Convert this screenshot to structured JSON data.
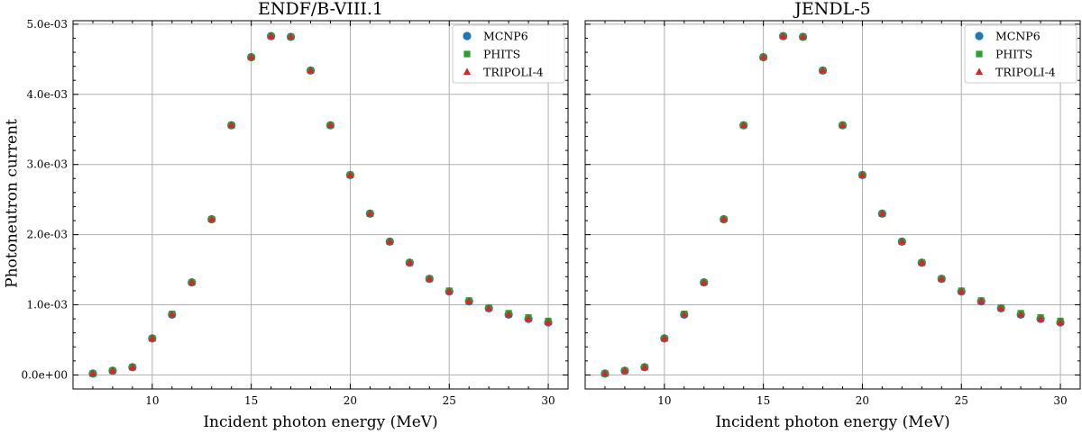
{
  "figure": {
    "ylabel": "Photoneutron current"
  },
  "chart_data": [
    {
      "type": "scatter",
      "title": "ENDF/B-VIII.1",
      "xlabel": "Incident photon energy (MeV)",
      "ylabel": "Photoneutron current",
      "xlim": [
        6.0,
        31.0
      ],
      "ylim": [
        -0.0002,
        0.00505
      ],
      "xticks": [
        10,
        15,
        20,
        25,
        30
      ],
      "yticks": [
        0.0,
        0.001,
        0.002,
        0.003,
        0.004,
        0.005
      ],
      "ytick_labels": [
        "0.0e+00",
        "1.0e-03",
        "2.0e-03",
        "3.0e-03",
        "4.0e-03",
        "5.0e-03"
      ],
      "grid": true,
      "legend_position": "top-right",
      "x": [
        7,
        8,
        9,
        10,
        11,
        12,
        13,
        14,
        15,
        16,
        17,
        18,
        19,
        20,
        21,
        22,
        23,
        24,
        25,
        26,
        27,
        28,
        29,
        30
      ],
      "series": [
        {
          "name": "MCNP6",
          "marker": "circle",
          "color": "#1f77b4",
          "values": [
            2e-05,
            6e-05,
            0.00011,
            0.00052,
            0.00086,
            0.00132,
            0.00222,
            0.00356,
            0.00453,
            0.00483,
            0.00482,
            0.00434,
            0.00356,
            0.00285,
            0.0023,
            0.0019,
            0.0016,
            0.00137,
            0.00119,
            0.00105,
            0.00095,
            0.00086,
            0.0008,
            0.00075
          ]
        },
        {
          "name": "PHITS",
          "marker": "square",
          "color": "#2ca02c",
          "values": [
            2e-05,
            6e-05,
            0.00011,
            0.00052,
            0.00087,
            0.00132,
            0.00222,
            0.00356,
            0.00453,
            0.00483,
            0.00482,
            0.00434,
            0.00356,
            0.00285,
            0.0023,
            0.0019,
            0.0016,
            0.00137,
            0.0012,
            0.00106,
            0.00096,
            0.00088,
            0.00082,
            0.00077
          ]
        },
        {
          "name": "TRIPOLI-4",
          "marker": "triangle",
          "color": "#d62728",
          "values": [
            2e-05,
            6e-05,
            0.00011,
            0.00052,
            0.00086,
            0.00132,
            0.00222,
            0.00356,
            0.00453,
            0.00483,
            0.00482,
            0.00434,
            0.00356,
            0.00285,
            0.0023,
            0.0019,
            0.0016,
            0.00137,
            0.00119,
            0.00105,
            0.00095,
            0.00086,
            0.0008,
            0.00075
          ]
        }
      ]
    },
    {
      "type": "scatter",
      "title": "JENDL-5",
      "xlabel": "Incident photon energy (MeV)",
      "ylabel": "",
      "xlim": [
        6.0,
        31.0
      ],
      "ylim": [
        -0.0002,
        0.00505
      ],
      "xticks": [
        10,
        15,
        20,
        25,
        30
      ],
      "yticks": [
        0.0,
        0.001,
        0.002,
        0.003,
        0.004,
        0.005
      ],
      "ytick_labels": [],
      "grid": true,
      "legend_position": "top-right",
      "x": [
        7,
        8,
        9,
        10,
        11,
        12,
        13,
        14,
        15,
        16,
        17,
        18,
        19,
        20,
        21,
        22,
        23,
        24,
        25,
        26,
        27,
        28,
        29,
        30
      ],
      "series": [
        {
          "name": "MCNP6",
          "marker": "circle",
          "color": "#1f77b4",
          "values": [
            2e-05,
            6e-05,
            0.00011,
            0.00052,
            0.00086,
            0.00132,
            0.00222,
            0.00356,
            0.00453,
            0.00483,
            0.00482,
            0.00434,
            0.00356,
            0.00285,
            0.0023,
            0.0019,
            0.0016,
            0.00137,
            0.00119,
            0.00105,
            0.00095,
            0.00086,
            0.0008,
            0.00075
          ]
        },
        {
          "name": "PHITS",
          "marker": "square",
          "color": "#2ca02c",
          "values": [
            2e-05,
            6e-05,
            0.00011,
            0.00052,
            0.00087,
            0.00132,
            0.00222,
            0.00356,
            0.00453,
            0.00483,
            0.00482,
            0.00434,
            0.00356,
            0.00285,
            0.0023,
            0.0019,
            0.0016,
            0.00137,
            0.0012,
            0.00106,
            0.00096,
            0.00088,
            0.00082,
            0.00077
          ]
        },
        {
          "name": "TRIPOLI-4",
          "marker": "triangle",
          "color": "#d62728",
          "values": [
            2e-05,
            6e-05,
            0.00011,
            0.00052,
            0.00086,
            0.00132,
            0.00222,
            0.00356,
            0.00453,
            0.00483,
            0.00482,
            0.00434,
            0.00356,
            0.00285,
            0.0023,
            0.0019,
            0.0016,
            0.00137,
            0.00119,
            0.00105,
            0.00095,
            0.00086,
            0.0008,
            0.00075
          ]
        }
      ]
    }
  ]
}
